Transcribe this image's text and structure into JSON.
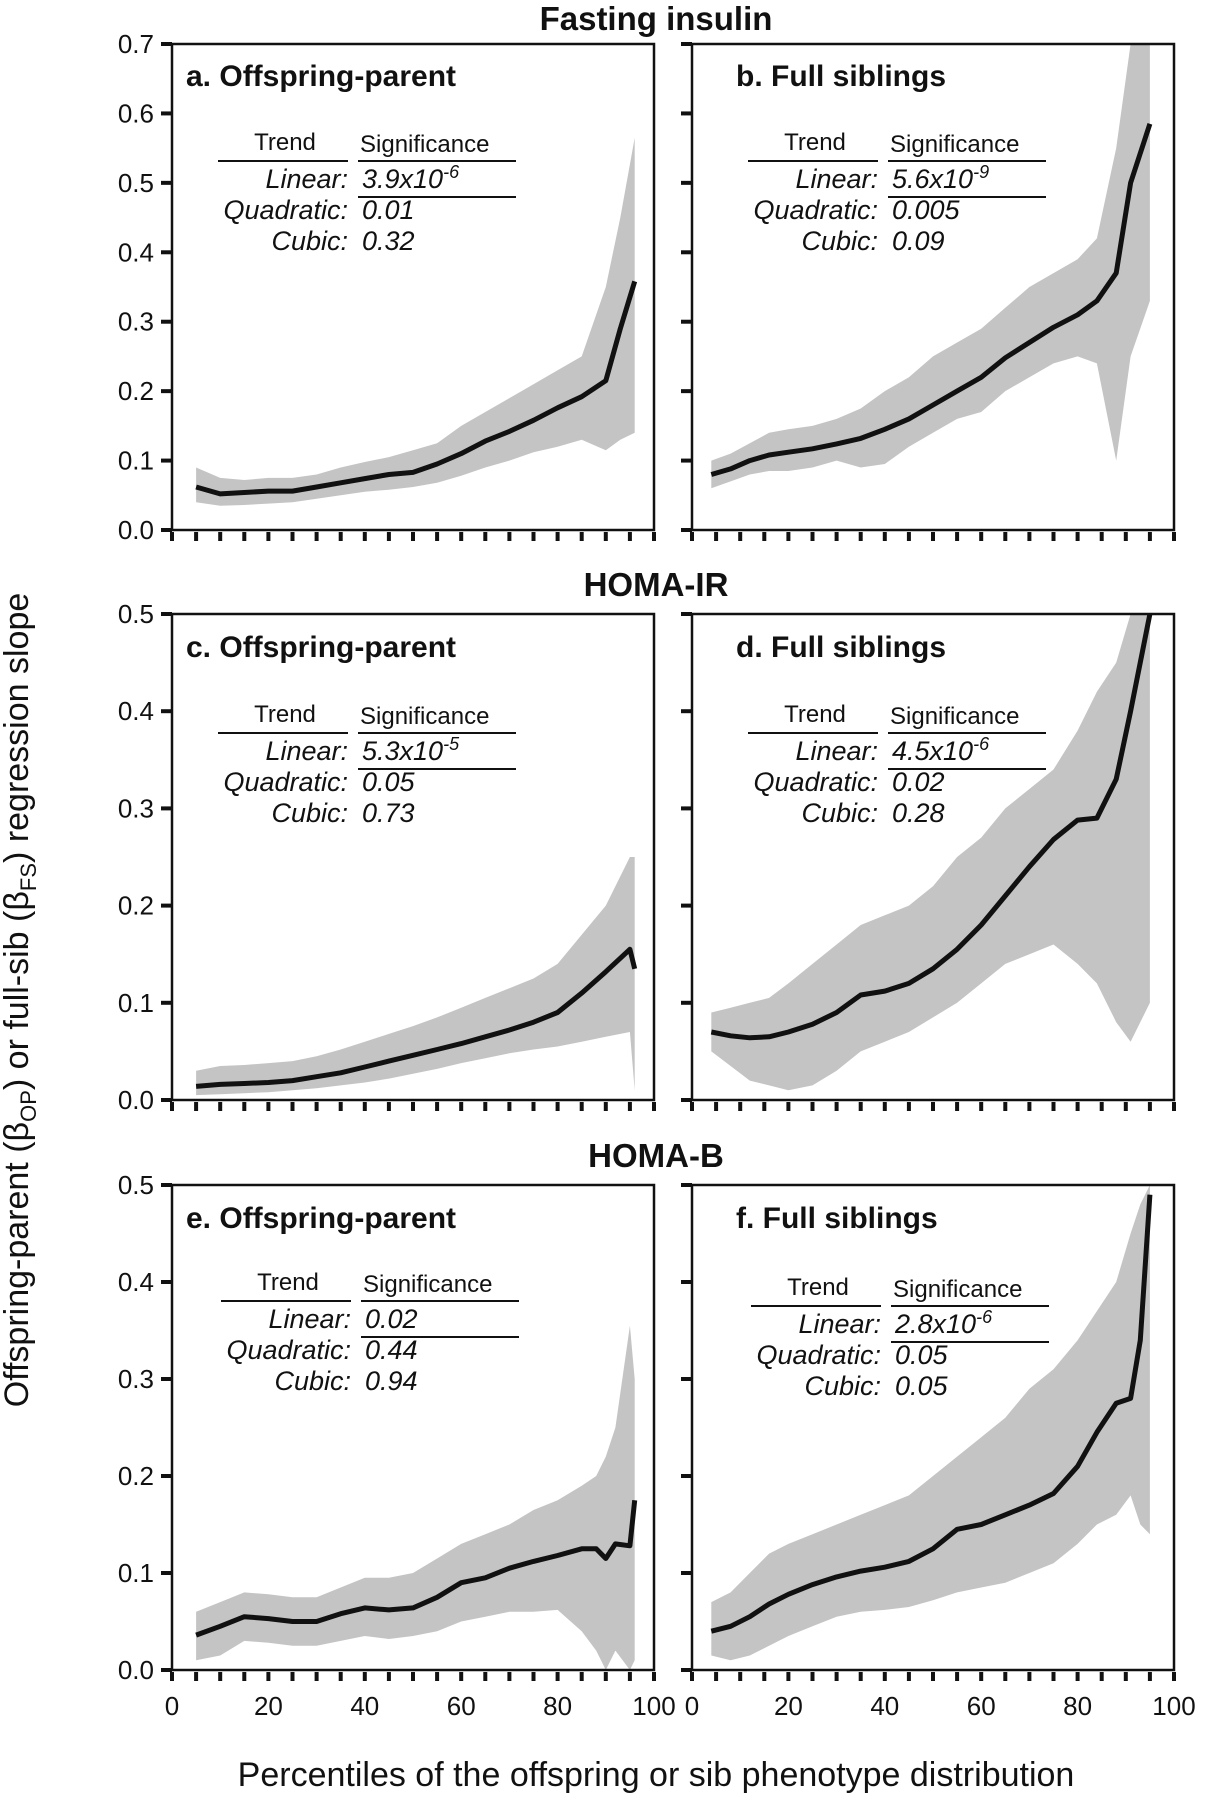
{
  "ylabel": "Offspring-parent (βOP) or full-sib (βFS) regression slope",
  "ylabel_parts": {
    "a": "Offspring-parent (β",
    "b": "OP",
    "c": ") or full-sib (β",
    "d": "FS",
    "e": ") regression slope"
  },
  "xlabel": "Percentiles of the offspring or sib phenotype distribution",
  "sections": [
    "Fasting insulin",
    "HOMA-IR",
    "HOMA-B"
  ],
  "colors": {
    "line": "#111111",
    "band": "#c4c4c4",
    "axis": "#111111"
  },
  "chart_data": [
    {
      "type": "line",
      "panel": "a",
      "title": "a. Offspring-parent",
      "section": "Fasting insulin",
      "xlim": [
        0,
        100
      ],
      "ylim": [
        0,
        0.7
      ],
      "yticks": [
        0.0,
        0.1,
        0.2,
        0.3,
        0.4,
        0.5,
        0.6,
        0.7
      ],
      "x": [
        5,
        10,
        15,
        20,
        25,
        30,
        35,
        40,
        45,
        50,
        55,
        60,
        65,
        70,
        75,
        80,
        85,
        90,
        93,
        96
      ],
      "y": [
        0.062,
        0.052,
        0.054,
        0.056,
        0.056,
        0.062,
        0.068,
        0.074,
        0.08,
        0.083,
        0.095,
        0.11,
        0.128,
        0.142,
        0.158,
        0.176,
        0.192,
        0.215,
        0.29,
        0.358
      ],
      "lower": [
        0.04,
        0.035,
        0.036,
        0.038,
        0.04,
        0.045,
        0.05,
        0.055,
        0.058,
        0.062,
        0.068,
        0.078,
        0.09,
        0.1,
        0.112,
        0.12,
        0.13,
        0.115,
        0.13,
        0.14
      ],
      "upper": [
        0.09,
        0.075,
        0.072,
        0.075,
        0.075,
        0.08,
        0.09,
        0.098,
        0.105,
        0.115,
        0.125,
        0.15,
        0.17,
        0.19,
        0.21,
        0.23,
        0.25,
        0.35,
        0.45,
        0.565
      ],
      "trend": {
        "head_trend": "Trend",
        "head_sig": "Significance",
        "rows": [
          {
            "name": "Linear:",
            "sig": "3.9x10",
            "exp": "-6"
          },
          {
            "name": "Quadratic:",
            "sig": "0.01",
            "exp": ""
          },
          {
            "name": "Cubic:",
            "sig": "0.32",
            "exp": ""
          }
        ]
      }
    },
    {
      "type": "line",
      "panel": "b",
      "title": "b. Full siblings",
      "section": "Fasting insulin",
      "xlim": [
        0,
        100
      ],
      "ylim": [
        0,
        0.7
      ],
      "yticks": [],
      "x": [
        4,
        8,
        12,
        16,
        20,
        25,
        30,
        35,
        40,
        45,
        50,
        55,
        60,
        65,
        70,
        75,
        80,
        84,
        88,
        91,
        95
      ],
      "y": [
        0.08,
        0.088,
        0.1,
        0.108,
        0.112,
        0.117,
        0.124,
        0.132,
        0.145,
        0.16,
        0.18,
        0.2,
        0.22,
        0.248,
        0.27,
        0.292,
        0.31,
        0.33,
        0.37,
        0.5,
        0.585
      ],
      "lower": [
        0.06,
        0.07,
        0.08,
        0.085,
        0.085,
        0.09,
        0.1,
        0.09,
        0.095,
        0.12,
        0.14,
        0.16,
        0.17,
        0.2,
        0.22,
        0.24,
        0.25,
        0.24,
        0.1,
        0.25,
        0.33
      ],
      "upper": [
        0.1,
        0.11,
        0.125,
        0.14,
        0.145,
        0.15,
        0.16,
        0.175,
        0.2,
        0.22,
        0.25,
        0.27,
        0.29,
        0.32,
        0.35,
        0.37,
        0.39,
        0.42,
        0.55,
        0.7,
        0.7
      ],
      "trend": {
        "head_trend": "Trend",
        "head_sig": "Significance",
        "rows": [
          {
            "name": "Linear:",
            "sig": "5.6x10",
            "exp": "-9"
          },
          {
            "name": "Quadratic:",
            "sig": "0.005",
            "exp": ""
          },
          {
            "name": "Cubic:",
            "sig": "0.09",
            "exp": ""
          }
        ]
      }
    },
    {
      "type": "line",
      "panel": "c",
      "title": "c. Offspring-parent",
      "section": "HOMA-IR",
      "xlim": [
        0,
        100
      ],
      "ylim": [
        0,
        0.5
      ],
      "yticks": [
        0.0,
        0.1,
        0.2,
        0.3,
        0.4,
        0.5
      ],
      "x": [
        5,
        10,
        15,
        20,
        25,
        30,
        35,
        40,
        45,
        50,
        55,
        60,
        65,
        70,
        75,
        80,
        85,
        90,
        95,
        96
      ],
      "y": [
        0.014,
        0.016,
        0.017,
        0.018,
        0.02,
        0.024,
        0.028,
        0.034,
        0.04,
        0.046,
        0.052,
        0.058,
        0.065,
        0.072,
        0.08,
        0.09,
        0.11,
        0.132,
        0.155,
        0.135
      ],
      "lower": [
        0.005,
        0.006,
        0.007,
        0.008,
        0.01,
        0.012,
        0.015,
        0.018,
        0.022,
        0.027,
        0.032,
        0.038,
        0.043,
        0.048,
        0.052,
        0.055,
        0.06,
        0.065,
        0.07,
        0.01
      ],
      "upper": [
        0.03,
        0.035,
        0.036,
        0.038,
        0.04,
        0.045,
        0.052,
        0.06,
        0.068,
        0.076,
        0.085,
        0.095,
        0.105,
        0.115,
        0.125,
        0.14,
        0.17,
        0.2,
        0.25,
        0.25
      ],
      "trend": {
        "head_trend": "Trend",
        "head_sig": "Significance",
        "rows": [
          {
            "name": "Linear:",
            "sig": "5.3x10",
            "exp": "-5"
          },
          {
            "name": "Quadratic:",
            "sig": "0.05",
            "exp": ""
          },
          {
            "name": "Cubic:",
            "sig": "0.73",
            "exp": ""
          }
        ]
      }
    },
    {
      "type": "line",
      "panel": "d",
      "title": "d. Full siblings",
      "section": "HOMA-IR",
      "xlim": [
        0,
        100
      ],
      "ylim": [
        0,
        0.5
      ],
      "yticks": [],
      "x": [
        4,
        8,
        12,
        16,
        20,
        25,
        30,
        35,
        40,
        45,
        50,
        55,
        60,
        65,
        70,
        75,
        80,
        84,
        88,
        91,
        95
      ],
      "y": [
        0.07,
        0.066,
        0.064,
        0.065,
        0.07,
        0.078,
        0.09,
        0.108,
        0.112,
        0.12,
        0.135,
        0.155,
        0.18,
        0.21,
        0.24,
        0.268,
        0.288,
        0.29,
        0.33,
        0.4,
        0.5
      ],
      "lower": [
        0.05,
        0.035,
        0.02,
        0.015,
        0.01,
        0.015,
        0.03,
        0.05,
        0.06,
        0.07,
        0.085,
        0.1,
        0.12,
        0.14,
        0.15,
        0.16,
        0.14,
        0.12,
        0.08,
        0.06,
        0.1
      ],
      "upper": [
        0.09,
        0.095,
        0.1,
        0.105,
        0.12,
        0.14,
        0.16,
        0.18,
        0.19,
        0.2,
        0.22,
        0.25,
        0.27,
        0.3,
        0.32,
        0.34,
        0.38,
        0.42,
        0.45,
        0.5,
        0.5
      ],
      "trend": {
        "head_trend": "Trend",
        "head_sig": "Significance",
        "rows": [
          {
            "name": "Linear:",
            "sig": "4.5x10",
            "exp": "-6"
          },
          {
            "name": "Quadratic:",
            "sig": "0.02",
            "exp": ""
          },
          {
            "name": "Cubic:",
            "sig": "0.28",
            "exp": ""
          }
        ]
      }
    },
    {
      "type": "line",
      "panel": "e",
      "title": "e. Offspring-parent",
      "section": "HOMA-B",
      "xlim": [
        0,
        100
      ],
      "ylim": [
        0,
        0.5
      ],
      "yticks": [
        0.0,
        0.1,
        0.2,
        0.3,
        0.4,
        0.5
      ],
      "x": [
        5,
        10,
        15,
        20,
        25,
        30,
        35,
        40,
        45,
        50,
        55,
        60,
        65,
        70,
        75,
        80,
        85,
        88,
        90,
        92,
        95,
        96
      ],
      "y": [
        0.036,
        0.045,
        0.055,
        0.053,
        0.05,
        0.05,
        0.058,
        0.064,
        0.062,
        0.064,
        0.075,
        0.09,
        0.095,
        0.105,
        0.112,
        0.118,
        0.125,
        0.125,
        0.115,
        0.13,
        0.128,
        0.175
      ],
      "lower": [
        0.01,
        0.015,
        0.03,
        0.028,
        0.025,
        0.025,
        0.03,
        0.035,
        0.032,
        0.035,
        0.04,
        0.05,
        0.055,
        0.06,
        0.06,
        0.062,
        0.04,
        0.02,
        0.0,
        0.02,
        0.0,
        0.01
      ],
      "upper": [
        0.06,
        0.07,
        0.08,
        0.078,
        0.075,
        0.075,
        0.085,
        0.095,
        0.095,
        0.1,
        0.115,
        0.13,
        0.14,
        0.15,
        0.165,
        0.175,
        0.19,
        0.2,
        0.22,
        0.25,
        0.355,
        0.3
      ],
      "trend": {
        "head_trend": "Trend",
        "head_sig": "Significance",
        "rows": [
          {
            "name": "Linear:",
            "sig": "0.02",
            "exp": ""
          },
          {
            "name": "Quadratic:",
            "sig": "0.44",
            "exp": ""
          },
          {
            "name": "Cubic:",
            "sig": "0.94",
            "exp": ""
          }
        ]
      }
    },
    {
      "type": "line",
      "panel": "f",
      "title": "f. Full siblings",
      "section": "HOMA-B",
      "xlim": [
        0,
        100
      ],
      "ylim": [
        0,
        0.5
      ],
      "yticks": [],
      "xticks": [
        0,
        20,
        40,
        60,
        80,
        100
      ],
      "x": [
        4,
        8,
        12,
        16,
        20,
        25,
        30,
        35,
        40,
        45,
        50,
        55,
        60,
        65,
        70,
        75,
        80,
        84,
        88,
        91,
        93,
        95
      ],
      "y": [
        0.04,
        0.045,
        0.055,
        0.068,
        0.078,
        0.088,
        0.096,
        0.102,
        0.106,
        0.112,
        0.125,
        0.145,
        0.15,
        0.16,
        0.17,
        0.182,
        0.21,
        0.245,
        0.275,
        0.28,
        0.34,
        0.49
      ],
      "lower": [
        0.015,
        0.01,
        0.015,
        0.025,
        0.035,
        0.045,
        0.055,
        0.06,
        0.062,
        0.065,
        0.072,
        0.08,
        0.085,
        0.09,
        0.1,
        0.11,
        0.13,
        0.15,
        0.16,
        0.18,
        0.15,
        0.14
      ],
      "upper": [
        0.07,
        0.08,
        0.1,
        0.12,
        0.13,
        0.14,
        0.15,
        0.16,
        0.17,
        0.18,
        0.2,
        0.22,
        0.24,
        0.26,
        0.29,
        0.31,
        0.34,
        0.37,
        0.4,
        0.45,
        0.48,
        0.5
      ],
      "trend": {
        "head_trend": "Trend",
        "head_sig": "Significance",
        "rows": [
          {
            "name": "Linear:",
            "sig": "2.8x10",
            "exp": "-6"
          },
          {
            "name": "Quadratic:",
            "sig": "0.05",
            "exp": ""
          },
          {
            "name": "Cubic:",
            "sig": "0.05",
            "exp": ""
          }
        ]
      }
    }
  ]
}
